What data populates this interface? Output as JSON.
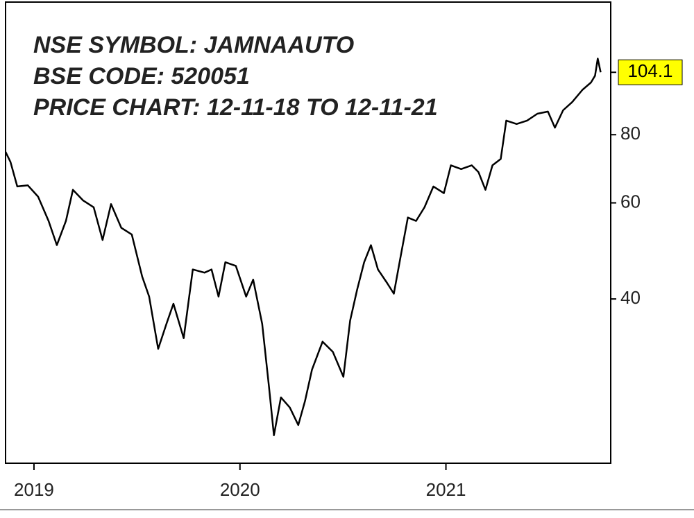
{
  "chart_data": {
    "type": "line",
    "title_lines": [
      "NSE SYMBOL: JAMNAAUTO",
      "BSE CODE: 520051",
      "PRICE CHART: 12-11-18 TO 12-11-21"
    ],
    "x": [
      2018.862,
      2018.886,
      2018.919,
      2018.97,
      2019.02,
      2019.071,
      2019.111,
      2019.155,
      2019.189,
      2019.239,
      2019.29,
      2019.333,
      2019.374,
      2019.424,
      2019.475,
      2019.525,
      2019.559,
      2019.603,
      2019.643,
      2019.677,
      2019.727,
      2019.771,
      2019.828,
      2019.862,
      2019.896,
      2019.929,
      2019.98,
      2020.03,
      2020.064,
      2020.108,
      2020.141,
      2020.165,
      2020.199,
      2020.242,
      2020.283,
      2020.316,
      2020.35,
      2020.401,
      2020.451,
      2020.502,
      2020.535,
      2020.569,
      2020.603,
      2020.636,
      2020.67,
      2020.714,
      2020.747,
      2020.781,
      2020.815,
      2020.855,
      2020.896,
      2020.939,
      2020.99,
      2021.024,
      2021.074,
      2021.125,
      2021.158,
      2021.192,
      2021.226,
      2021.266,
      2021.293,
      2021.343,
      2021.394,
      2021.444,
      2021.495,
      2021.529,
      2021.569,
      2021.613,
      2021.663,
      2021.704,
      2021.724,
      2021.737,
      2021.751
    ],
    "values": [
      74.4,
      71.3,
      64.3,
      64.6,
      61.6,
      55.6,
      50.2,
      55.6,
      63.4,
      60.6,
      58.9,
      51.3,
      59.7,
      54.0,
      52.5,
      44.0,
      40.4,
      32.4,
      36.0,
      39.2,
      33.9,
      45.3,
      44.7,
      45.3,
      40.4,
      46.7,
      46.0,
      40.4,
      43.4,
      36.0,
      27.6,
      22.5,
      26.4,
      25.3,
      23.5,
      26.0,
      29.7,
      33.4,
      32.0,
      28.8,
      36.5,
      41.6,
      46.7,
      50.2,
      45.3,
      42.8,
      40.9,
      48.1,
      56.4,
      55.6,
      58.9,
      64.3,
      62.5,
      70.3,
      69.2,
      70.3,
      68.3,
      63.4,
      70.3,
      72.2,
      84.9,
      83.7,
      84.9,
      87.4,
      88.2,
      82.4,
      88.7,
      91.8,
      96.7,
      99.7,
      102.6,
      110.3,
      104.1
    ],
    "color": "#000000",
    "log_scale": true,
    "xlim": [
      2018.862,
      2021.8
    ],
    "xticks": [
      2019,
      2020,
      2021
    ],
    "ylim": [
      20,
      140
    ],
    "yticks": [
      40,
      60,
      80
    ],
    "last_label_color": "#ffff00"
  }
}
